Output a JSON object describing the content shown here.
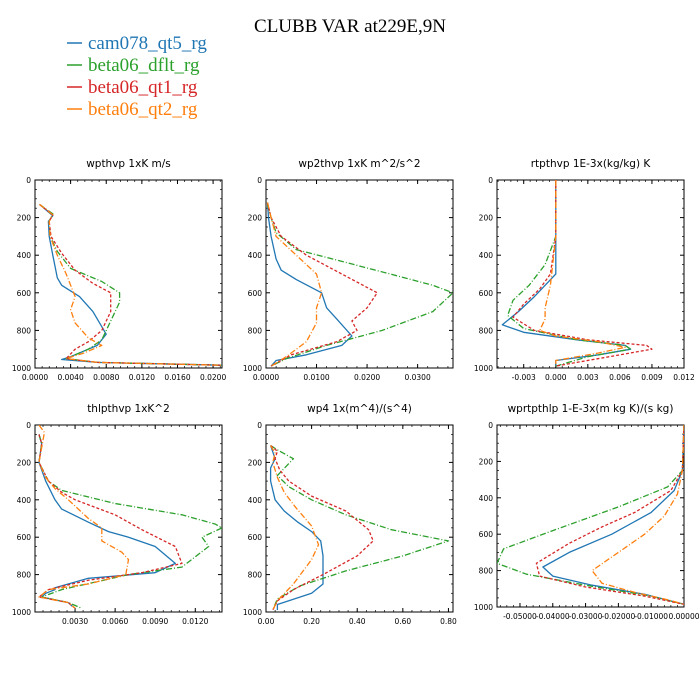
{
  "figure": {
    "title": "CLUBB VAR at229E,9N"
  },
  "colors": {
    "cam078_qt5_rg": "#2077b4",
    "beta06_dflt_rg": "#2ca02c",
    "beta06_qt1_rg": "#d62728",
    "beta06_qt2_rg": "#ff7f0e"
  },
  "legend": [
    {
      "name": "cam078_qt5_rg",
      "color": "#2077b4"
    },
    {
      "name": "beta06_dflt_rg",
      "color": "#2ca02c"
    },
    {
      "name": "beta06_qt1_rg",
      "color": "#d62728"
    },
    {
      "name": "beta06_qt2_rg",
      "color": "#ff7f0e"
    }
  ],
  "chart_data": [
    {
      "type": "line",
      "title": "wpthvp  1xK m/s",
      "xlim": [
        0,
        0.021
      ],
      "ylim": [
        1000,
        0
      ],
      "xticks": [
        0.0,
        0.004,
        0.008,
        0.012,
        0.016,
        0.02
      ],
      "xticklabels": [
        "0.0000",
        "0.0040",
        "0.0080",
        "0.0120",
        "0.0160",
        "0.0200"
      ],
      "yticks": [
        0,
        200,
        400,
        600,
        800,
        1000
      ],
      "series": [
        {
          "name": "cam078_qt5_rg",
          "color": "#2077b4",
          "dash": "",
          "x": [
            0.0005,
            0.002,
            0.0015,
            0.0016,
            0.002,
            0.0025,
            0.003,
            0.005,
            0.0065,
            0.008,
            0.007,
            0.004,
            0.003,
            0.007,
            0.021
          ],
          "y": [
            130,
            190,
            220,
            300,
            400,
            520,
            560,
            620,
            700,
            820,
            880,
            940,
            955,
            970,
            985
          ]
        },
        {
          "name": "beta06_dflt_rg",
          "color": "#2ca02c",
          "dash": "6,2,1,2",
          "x": [
            0.0005,
            0.002,
            0.0016,
            0.0017,
            0.0025,
            0.004,
            0.0075,
            0.0095,
            0.0095,
            0.0085,
            0.0075,
            0.006,
            0.0035,
            0.007,
            0.021
          ],
          "y": [
            130,
            180,
            220,
            300,
            380,
            470,
            540,
            600,
            650,
            750,
            850,
            900,
            950,
            970,
            985
          ]
        },
        {
          "name": "beta06_qt1_rg",
          "color": "#d62728",
          "dash": "3,2",
          "x": [
            0.0005,
            0.002,
            0.0016,
            0.0018,
            0.003,
            0.0045,
            0.0065,
            0.0085,
            0.0085,
            0.0075,
            0.006,
            0.0045,
            0.0035,
            0.007,
            0.021
          ],
          "y": [
            130,
            185,
            220,
            300,
            390,
            480,
            550,
            600,
            700,
            800,
            860,
            900,
            950,
            970,
            985
          ]
        },
        {
          "name": "beta06_qt2_rg",
          "color": "#ff7f0e",
          "dash": "6,2,1,2",
          "x": [
            0.0005,
            0.002,
            0.0016,
            0.0017,
            0.0025,
            0.0035,
            0.0045,
            0.004,
            0.0045,
            0.006,
            0.0075,
            0.0055,
            0.0035,
            0.007,
            0.021
          ],
          "y": [
            130,
            185,
            220,
            300,
            400,
            500,
            620,
            690,
            760,
            840,
            880,
            920,
            950,
            970,
            985
          ]
        }
      ]
    },
    {
      "type": "line",
      "title": "wp2thvp  1xK m^2/s^2",
      "xlim": [
        0,
        0.037
      ],
      "ylim": [
        1000,
        0
      ],
      "xticks": [
        0.0,
        0.01,
        0.02,
        0.03
      ],
      "xticklabels": [
        "0.0000",
        "0.0100",
        "0.0200",
        "0.0300"
      ],
      "yticks": [
        0,
        200,
        400,
        600,
        800,
        1000
      ],
      "series": [
        {
          "name": "cam078_qt5_rg",
          "color": "#2077b4",
          "dash": "",
          "x": [
            0.0003,
            0.0005,
            0.001,
            0.002,
            0.003,
            0.006,
            0.011,
            0.012,
            0.014,
            0.017,
            0.015,
            0.008,
            0.002,
            0.001
          ],
          "y": [
            120,
            200,
            300,
            420,
            480,
            530,
            600,
            680,
            740,
            830,
            880,
            930,
            960,
            990
          ]
        },
        {
          "name": "beta06_dflt_rg",
          "color": "#2ca02c",
          "dash": "6,2,1,2",
          "x": [
            0.0003,
            0.001,
            0.002,
            0.006,
            0.016,
            0.026,
            0.033,
            0.037,
            0.033,
            0.023,
            0.012,
            0.004,
            0.001
          ],
          "y": [
            130,
            200,
            280,
            370,
            440,
            510,
            560,
            600,
            700,
            800,
            880,
            950,
            990
          ]
        },
        {
          "name": "beta06_qt1_rg",
          "color": "#d62728",
          "dash": "3,2",
          "x": [
            0.0003,
            0.001,
            0.003,
            0.008,
            0.015,
            0.022,
            0.02,
            0.017,
            0.018,
            0.014,
            0.005,
            0.001
          ],
          "y": [
            120,
            200,
            300,
            400,
            500,
            600,
            680,
            750,
            800,
            860,
            930,
            990
          ]
        },
        {
          "name": "beta06_qt2_rg",
          "color": "#ff7f0e",
          "dash": "6,2,1,2",
          "x": [
            0.0003,
            0.001,
            0.002,
            0.006,
            0.01,
            0.011,
            0.01,
            0.01,
            0.008,
            0.004,
            0.001
          ],
          "y": [
            120,
            200,
            300,
            400,
            500,
            600,
            680,
            760,
            860,
            940,
            990
          ]
        }
      ]
    },
    {
      "type": "line",
      "title": "rtpthvp  1E-3x(kg/kg) K",
      "xlim": [
        -0.0055,
        0.012
      ],
      "ylim": [
        1000,
        0
      ],
      "xticks": [
        -0.003,
        0.0,
        0.003,
        0.006,
        0.009,
        0.012
      ],
      "xticklabels": [
        "-0.003",
        "0.000",
        "0.003",
        "0.006",
        "0.009",
        "0.012"
      ],
      "yticks": [
        0,
        200,
        400,
        600,
        800,
        1000
      ],
      "series": [
        {
          "name": "cam078_qt5_rg",
          "color": "#2077b4",
          "dash": "",
          "x": [
            0.0,
            0.0,
            0.0,
            -0.001,
            -0.002,
            -0.0035,
            -0.005,
            -0.003,
            0.002,
            0.0065,
            0.007,
            0.004,
            0.0,
            0.0
          ],
          "y": [
            0,
            300,
            500,
            560,
            620,
            700,
            770,
            810,
            850,
            880,
            900,
            930,
            960,
            990
          ]
        },
        {
          "name": "beta06_dflt_rg",
          "color": "#2ca02c",
          "dash": "6,2,1,2",
          "x": [
            0.0,
            0.0,
            -0.001,
            -0.0025,
            -0.004,
            -0.0045,
            -0.003,
            0.002,
            0.0065,
            0.007,
            0.003,
            0.0
          ],
          "y": [
            0,
            300,
            450,
            560,
            640,
            720,
            790,
            850,
            880,
            900,
            940,
            990
          ]
        },
        {
          "name": "beta06_qt1_rg",
          "color": "#d62728",
          "dash": "3,2",
          "x": [
            0.0,
            0.0,
            -0.0005,
            -0.0015,
            -0.003,
            -0.004,
            -0.002,
            0.003,
            0.0085,
            0.009,
            0.005,
            0.0
          ],
          "y": [
            0,
            300,
            500,
            580,
            660,
            730,
            800,
            850,
            880,
            900,
            940,
            990
          ]
        },
        {
          "name": "beta06_qt2_rg",
          "color": "#ff7f0e",
          "dash": "6,2,1,2",
          "x": [
            0.0,
            0.0,
            -0.0005,
            -0.001,
            -0.001,
            -0.0015,
            0.0,
            0.004,
            0.0065,
            0.004,
            0.0,
            0.0
          ],
          "y": [
            0,
            300,
            560,
            680,
            740,
            800,
            830,
            860,
            890,
            920,
            960,
            990
          ]
        }
      ]
    },
    {
      "type": "line",
      "title": "thlpthvp  1xK^2",
      "xlim": [
        0,
        0.014
      ],
      "ylim": [
        1000,
        0
      ],
      "xticks": [
        0.003,
        0.006,
        0.009,
        0.012
      ],
      "xticklabels": [
        "0.0030",
        "0.0060",
        "0.0090",
        "0.0120"
      ],
      "yticks": [
        0,
        200,
        400,
        600,
        800,
        1000
      ],
      "series": [
        {
          "name": "cam078_qt5_rg",
          "color": "#2077b4",
          "dash": "",
          "x": [
            0.0003,
            0.0005,
            0.0003,
            0.0008,
            0.0015,
            0.002,
            0.004,
            0.0055,
            0.007,
            0.009,
            0.0105,
            0.009,
            0.004,
            0.0015,
            0.0015,
            0.0008,
            0.0005,
            0.0025,
            0.0028
          ],
          "y": [
            50,
            100,
            200,
            300,
            400,
            450,
            520,
            570,
            600,
            650,
            740,
            790,
            820,
            870,
            880,
            900,
            920,
            950,
            970
          ]
        },
        {
          "name": "beta06_dflt_rg",
          "color": "#2ca02c",
          "dash": "6,2,1,2",
          "x": [
            0.0003,
            0.0005,
            0.0003,
            0.001,
            0.002,
            0.006,
            0.011,
            0.0135,
            0.014,
            0.0125,
            0.013,
            0.011,
            0.007,
            0.002,
            0.0005,
            0.0025,
            0.0035
          ],
          "y": [
            50,
            100,
            200,
            300,
            350,
            420,
            480,
            530,
            550,
            600,
            650,
            760,
            800,
            880,
            920,
            950,
            980
          ]
        },
        {
          "name": "beta06_qt1_rg",
          "color": "#d62728",
          "dash": "3,2",
          "x": [
            0.0003,
            0.0005,
            0.0003,
            0.001,
            0.002,
            0.003,
            0.006,
            0.008,
            0.0105,
            0.011,
            0.008,
            0.004,
            0.001,
            0.0003,
            0.0025,
            0.003
          ],
          "y": [
            50,
            100,
            200,
            300,
            360,
            400,
            480,
            560,
            650,
            740,
            790,
            830,
            880,
            920,
            950,
            980
          ]
        },
        {
          "name": "beta06_qt2_rg",
          "color": "#ff7f0e",
          "dash": "6,2,1,2",
          "x": [
            0.0003,
            0.0007,
            0.0003,
            0.0008,
            0.0015,
            0.0025,
            0.004,
            0.005,
            0.005,
            0.0065,
            0.007,
            0.0068,
            0.004,
            0.001,
            0.0003,
            0.0025,
            0.003
          ],
          "y": [
            0,
            40,
            200,
            280,
            340,
            400,
            500,
            550,
            620,
            680,
            720,
            800,
            850,
            880,
            920,
            950,
            980
          ]
        }
      ]
    },
    {
      "type": "line",
      "title": "wp4  1x(m^4)/(s^4)",
      "xlim": [
        0,
        0.82
      ],
      "ylim": [
        1000,
        0
      ],
      "xticks": [
        0.0,
        0.2,
        0.4,
        0.6,
        0.8
      ],
      "xticklabels": [
        "0.00",
        "0.20",
        "0.40",
        "0.60",
        "0.80"
      ],
      "yticks": [
        0,
        200,
        400,
        600,
        800,
        1000
      ],
      "series": [
        {
          "name": "cam078_qt5_rg",
          "color": "#2077b4",
          "dash": "",
          "x": [
            0.02,
            0.04,
            0.02,
            0.02,
            0.04,
            0.08,
            0.14,
            0.2,
            0.24,
            0.25,
            0.25,
            0.2,
            0.1,
            0.05,
            0.05
          ],
          "y": [
            110,
            180,
            230,
            300,
            400,
            460,
            520,
            570,
            620,
            700,
            850,
            900,
            940,
            960,
            990
          ]
        },
        {
          "name": "beta06_dflt_rg",
          "color": "#2ca02c",
          "dash": "6,2,1,2",
          "x": [
            0.02,
            0.06,
            0.12,
            0.05,
            0.1,
            0.2,
            0.35,
            0.55,
            0.8,
            0.6,
            0.35,
            0.15,
            0.05,
            0.03
          ],
          "y": [
            110,
            140,
            180,
            270,
            330,
            400,
            480,
            560,
            620,
            700,
            780,
            860,
            930,
            990
          ]
        },
        {
          "name": "beta06_qt1_rg",
          "color": "#d62728",
          "dash": "3,2",
          "x": [
            0.02,
            0.05,
            0.04,
            0.06,
            0.1,
            0.2,
            0.35,
            0.45,
            0.47,
            0.4,
            0.25,
            0.12,
            0.05,
            0.03
          ],
          "y": [
            110,
            140,
            180,
            240,
            300,
            380,
            460,
            560,
            620,
            700,
            800,
            880,
            940,
            990
          ]
        },
        {
          "name": "beta06_qt2_rg",
          "color": "#ff7f0e",
          "dash": "6,2,1,2",
          "x": [
            0.02,
            0.04,
            0.03,
            0.05,
            0.08,
            0.13,
            0.2,
            0.23,
            0.2,
            0.12,
            0.05,
            0.03
          ],
          "y": [
            110,
            150,
            200,
            280,
            360,
            440,
            540,
            640,
            720,
            850,
            940,
            990
          ]
        }
      ]
    },
    {
      "type": "line",
      "title": "wprtpthlp  1-E-3x(m kg K)/(s kg)",
      "xlim": [
        -0.057,
        0.0
      ],
      "ylim": [
        1000,
        0
      ],
      "xticks": [
        -0.05,
        -0.04,
        -0.03,
        -0.02,
        -0.01,
        0.0
      ],
      "xticklabels": [
        "-0.05000",
        "-0.04000",
        "-0.03000",
        "-0.02000",
        "-0.01000",
        "0.00000"
      ],
      "yticks": [
        0,
        200,
        400,
        600,
        800,
        1000
      ],
      "series": [
        {
          "name": "cam078_qt5_rg",
          "color": "#2077b4",
          "dash": "",
          "x": [
            0.0,
            -0.0005,
            -0.003,
            -0.01,
            -0.022,
            -0.035,
            -0.043,
            -0.04,
            -0.028,
            -0.012,
            0.0
          ],
          "y": [
            0,
            250,
            360,
            480,
            600,
            700,
            780,
            830,
            880,
            930,
            985
          ]
        },
        {
          "name": "beta06_dflt_rg",
          "color": "#2ca02c",
          "dash": "6,2,1,2",
          "x": [
            0.0,
            -0.0005,
            -0.005,
            -0.02,
            -0.04,
            -0.055,
            -0.057,
            -0.048,
            -0.03,
            -0.01,
            0.0
          ],
          "y": [
            0,
            250,
            340,
            450,
            580,
            680,
            760,
            820,
            880,
            940,
            985
          ]
        },
        {
          "name": "beta06_qt1_rg",
          "color": "#d62728",
          "dash": "3,2",
          "x": [
            0.0,
            -0.0005,
            -0.004,
            -0.015,
            -0.025,
            -0.035,
            -0.045,
            -0.044,
            -0.03,
            -0.012,
            0.0
          ],
          "y": [
            0,
            250,
            360,
            480,
            560,
            650,
            760,
            830,
            890,
            940,
            985
          ]
        },
        {
          "name": "beta06_qt2_rg",
          "color": "#ff7f0e",
          "dash": "6,2,1,2",
          "x": [
            0.0,
            -0.0005,
            -0.002,
            -0.006,
            -0.012,
            -0.02,
            -0.028,
            -0.025,
            -0.015,
            -0.005,
            0.0
          ],
          "y": [
            0,
            250,
            380,
            500,
            600,
            700,
            800,
            870,
            920,
            960,
            985
          ]
        }
      ]
    }
  ]
}
